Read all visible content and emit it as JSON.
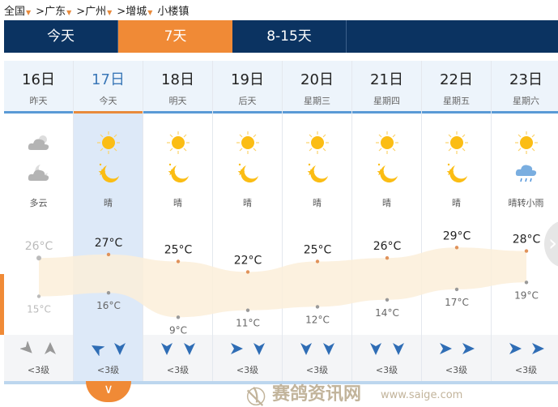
{
  "breadcrumb": [
    {
      "label": "全国",
      "dropdown": true
    },
    {
      "label": ">广东",
      "dropdown": true
    },
    {
      "label": ">广州",
      "dropdown": true
    },
    {
      "label": ">增城",
      "dropdown": true
    },
    {
      "label": "小楼镇",
      "dropdown": false
    }
  ],
  "tabs": [
    {
      "label": "今天"
    },
    {
      "label": "7天",
      "active": true
    },
    {
      "label": "8-15天"
    }
  ],
  "days": [
    {
      "date": "16日",
      "rel": "昨天",
      "icon_day": "cloudy-icon",
      "icon_night": "cloudy-night-icon",
      "weather": "多云",
      "high": "26°C",
      "low": "15°C",
      "wind": "<3级",
      "past": true
    },
    {
      "date": "17日",
      "rel": "今天",
      "icon_day": "sun-icon",
      "icon_night": "moon-icon",
      "weather": "晴",
      "high": "27°C",
      "low": "16°C",
      "wind": "<3级",
      "today": true
    },
    {
      "date": "18日",
      "rel": "明天",
      "icon_day": "sun-icon",
      "icon_night": "moon-icon",
      "weather": "晴",
      "high": "25°C",
      "low": "9°C",
      "wind": "<3级"
    },
    {
      "date": "19日",
      "rel": "后天",
      "icon_day": "sun-icon",
      "icon_night": "moon-icon",
      "weather": "晴",
      "high": "22°C",
      "low": "11°C",
      "wind": "<3级"
    },
    {
      "date": "20日",
      "rel": "星期三",
      "icon_day": "sun-icon",
      "icon_night": "moon-icon",
      "weather": "晴",
      "high": "25°C",
      "low": "12°C",
      "wind": "<3级"
    },
    {
      "date": "21日",
      "rel": "星期四",
      "icon_day": "sun-icon",
      "icon_night": "moon-icon",
      "weather": "晴",
      "high": "26°C",
      "low": "14°C",
      "wind": "<3级"
    },
    {
      "date": "22日",
      "rel": "星期五",
      "icon_day": "sun-icon",
      "icon_night": "moon-icon",
      "weather": "晴",
      "high": "29°C",
      "low": "17°C",
      "wind": "<3级"
    },
    {
      "date": "23日",
      "rel": "星期六",
      "icon_day": "sun-icon",
      "icon_night": "rain-icon",
      "weather": "晴转小雨",
      "high": "28°C",
      "low": "19°C",
      "wind": "<3级"
    }
  ],
  "temps_high": [
    26,
    27,
    25,
    22,
    25,
    26,
    29,
    28
  ],
  "temps_low": [
    15,
    16,
    9,
    11,
    12,
    14,
    17,
    19
  ],
  "wind_dirs": [
    [
      135,
      0
    ],
    [
      -60,
      180
    ],
    [
      180,
      180
    ],
    [
      90,
      180
    ],
    [
      180,
      180
    ],
    [
      180,
      180
    ],
    [
      90,
      90
    ],
    [
      90,
      90
    ]
  ],
  "colors": {
    "nav": "#0b3361",
    "accent": "#f08a36",
    "band": "#fcefd9",
    "sun": "#fbbd14",
    "wind": "#2f6db5"
  },
  "watermark": {
    "name": "赛鸽资讯网",
    "url": "www.saige.com"
  }
}
